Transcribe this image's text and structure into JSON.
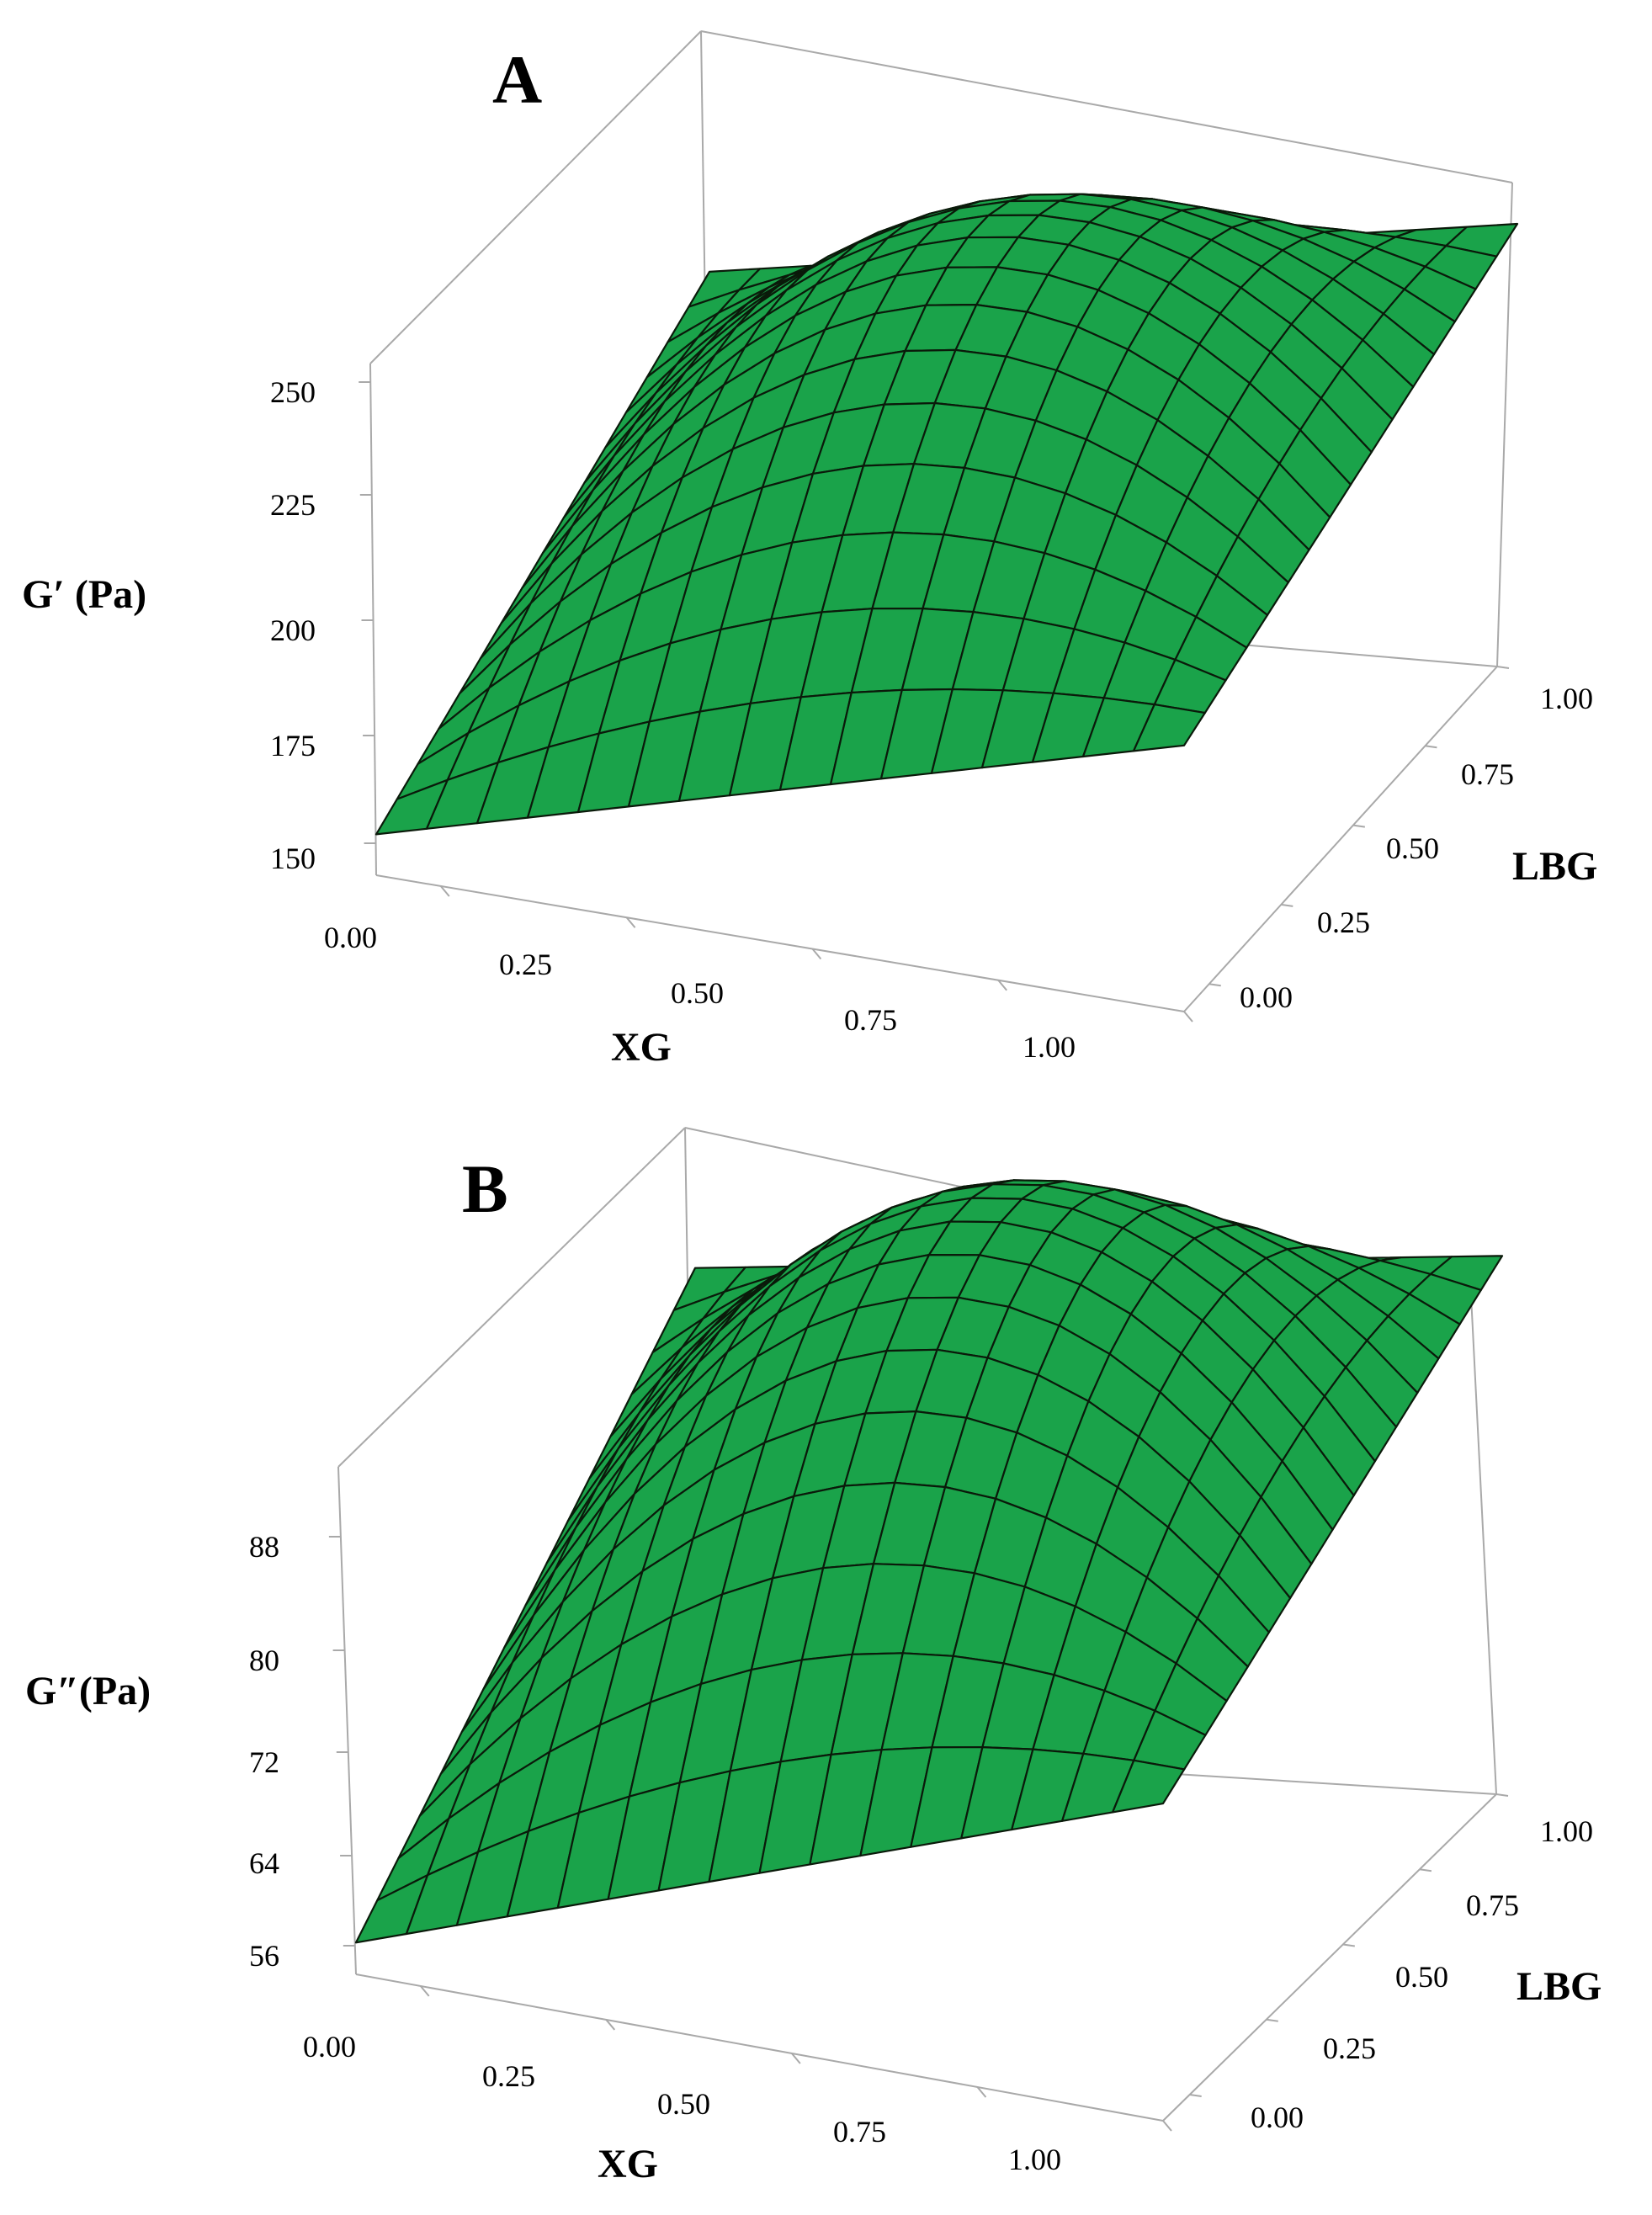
{
  "colors": {
    "surface": "#1aa34a",
    "mesh": "#0a1a0a",
    "box": "#a9a9a9"
  },
  "chart_data": [
    {
      "type": "surface3d",
      "panel": "A",
      "xlabel": "XG",
      "ylabel": "LBG",
      "zlabel": "G′ (Pa)",
      "x_ticks": [
        "0.00",
        "0.25",
        "0.50",
        "0.75",
        "1.00"
      ],
      "y_ticks": [
        "0.00",
        "0.25",
        "0.50",
        "0.75",
        "1.00"
      ],
      "z_ticks": [
        "150",
        "175",
        "200",
        "225",
        "250"
      ],
      "xlim": [
        0,
        1
      ],
      "ylim": [
        0,
        1
      ],
      "zlim": [
        150,
        250
      ],
      "grid_divisions": 16,
      "corner_values": {
        "xg0_lbg0": 158,
        "xg1_lbg0": 202,
        "xg0_lbg1": 214,
        "xg1_lbg1": 250
      },
      "peak": {
        "xg": 0.55,
        "lbg": 0.65,
        "value": 260
      }
    },
    {
      "type": "surface3d",
      "panel": "B",
      "xlabel": "XG",
      "ylabel": "LBG",
      "zlabel": "G″(Pa)",
      "x_ticks": [
        "0.00",
        "0.25",
        "0.50",
        "0.75",
        "1.00"
      ],
      "y_ticks": [
        "0.00",
        "0.25",
        "0.50",
        "0.75",
        "1.00"
      ],
      "z_ticks": [
        "56",
        "64",
        "72",
        "80",
        "88"
      ],
      "xlim": [
        0,
        1
      ],
      "ylim": [
        0,
        1
      ],
      "zlim": [
        56,
        88
      ],
      "grid_divisions": 16,
      "corner_values": {
        "xg0_lbg0": 58,
        "xg1_lbg0": 76,
        "xg0_lbg1": 86,
        "xg1_lbg1": 96
      },
      "peak": {
        "xg": 0.55,
        "lbg": 0.65,
        "value": 101
      }
    }
  ]
}
